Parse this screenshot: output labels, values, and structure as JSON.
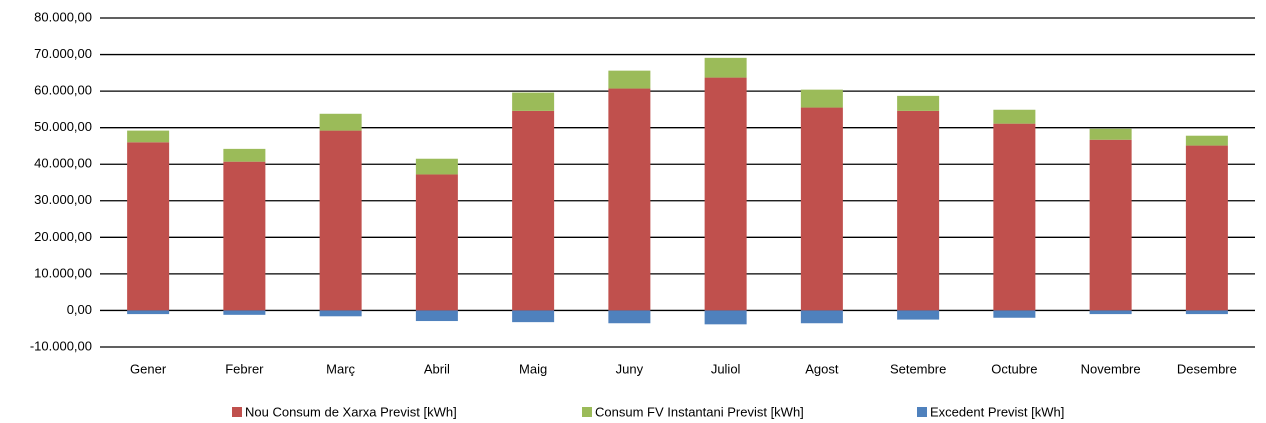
{
  "chart_data": {
    "type": "stacked_bar",
    "categories": [
      "Gener",
      "Febrer",
      "Març",
      "Abril",
      "Maig",
      "Juny",
      "Juliol",
      "Agost",
      "Setembre",
      "Octubre",
      "Novembre",
      "Desembre"
    ],
    "series": [
      {
        "name": "Nou Consum de Xarxa Previst [kWh]",
        "color": "#c0504d",
        "values": [
          46000,
          40700,
          49200,
          37200,
          54600,
          60700,
          63700,
          55500,
          54600,
          51100,
          46700,
          45100
        ]
      },
      {
        "name": "Consum FV Instantani Previst [kWh]",
        "color": "#9bbb59",
        "values": [
          3200,
          3500,
          4600,
          4300,
          5000,
          4900,
          5400,
          4900,
          4100,
          3800,
          3000,
          2700
        ]
      },
      {
        "name": "Excedent Previst [kWh]",
        "color": "#4f81bd",
        "values": [
          -1000,
          -1200,
          -1600,
          -2900,
          -3200,
          -3500,
          -3800,
          -3500,
          -2500,
          -2000,
          -1000,
          -1000
        ]
      }
    ],
    "ylim": [
      -10000,
      80000
    ],
    "yticks": [
      {
        "value": -10000,
        "label": "-10.000,00"
      },
      {
        "value": 0,
        "label": "0,00"
      },
      {
        "value": 10000,
        "label": "10.000,00"
      },
      {
        "value": 20000,
        "label": "20.000,00"
      },
      {
        "value": 30000,
        "label": "30.000,00"
      },
      {
        "value": 40000,
        "label": "40.000,00"
      },
      {
        "value": 50000,
        "label": "50.000,00"
      },
      {
        "value": 60000,
        "label": "60.000,00"
      },
      {
        "value": 70000,
        "label": "70.000,00"
      },
      {
        "value": 80000,
        "label": "80.000,00"
      }
    ],
    "grid": true,
    "legend": "bottom"
  }
}
